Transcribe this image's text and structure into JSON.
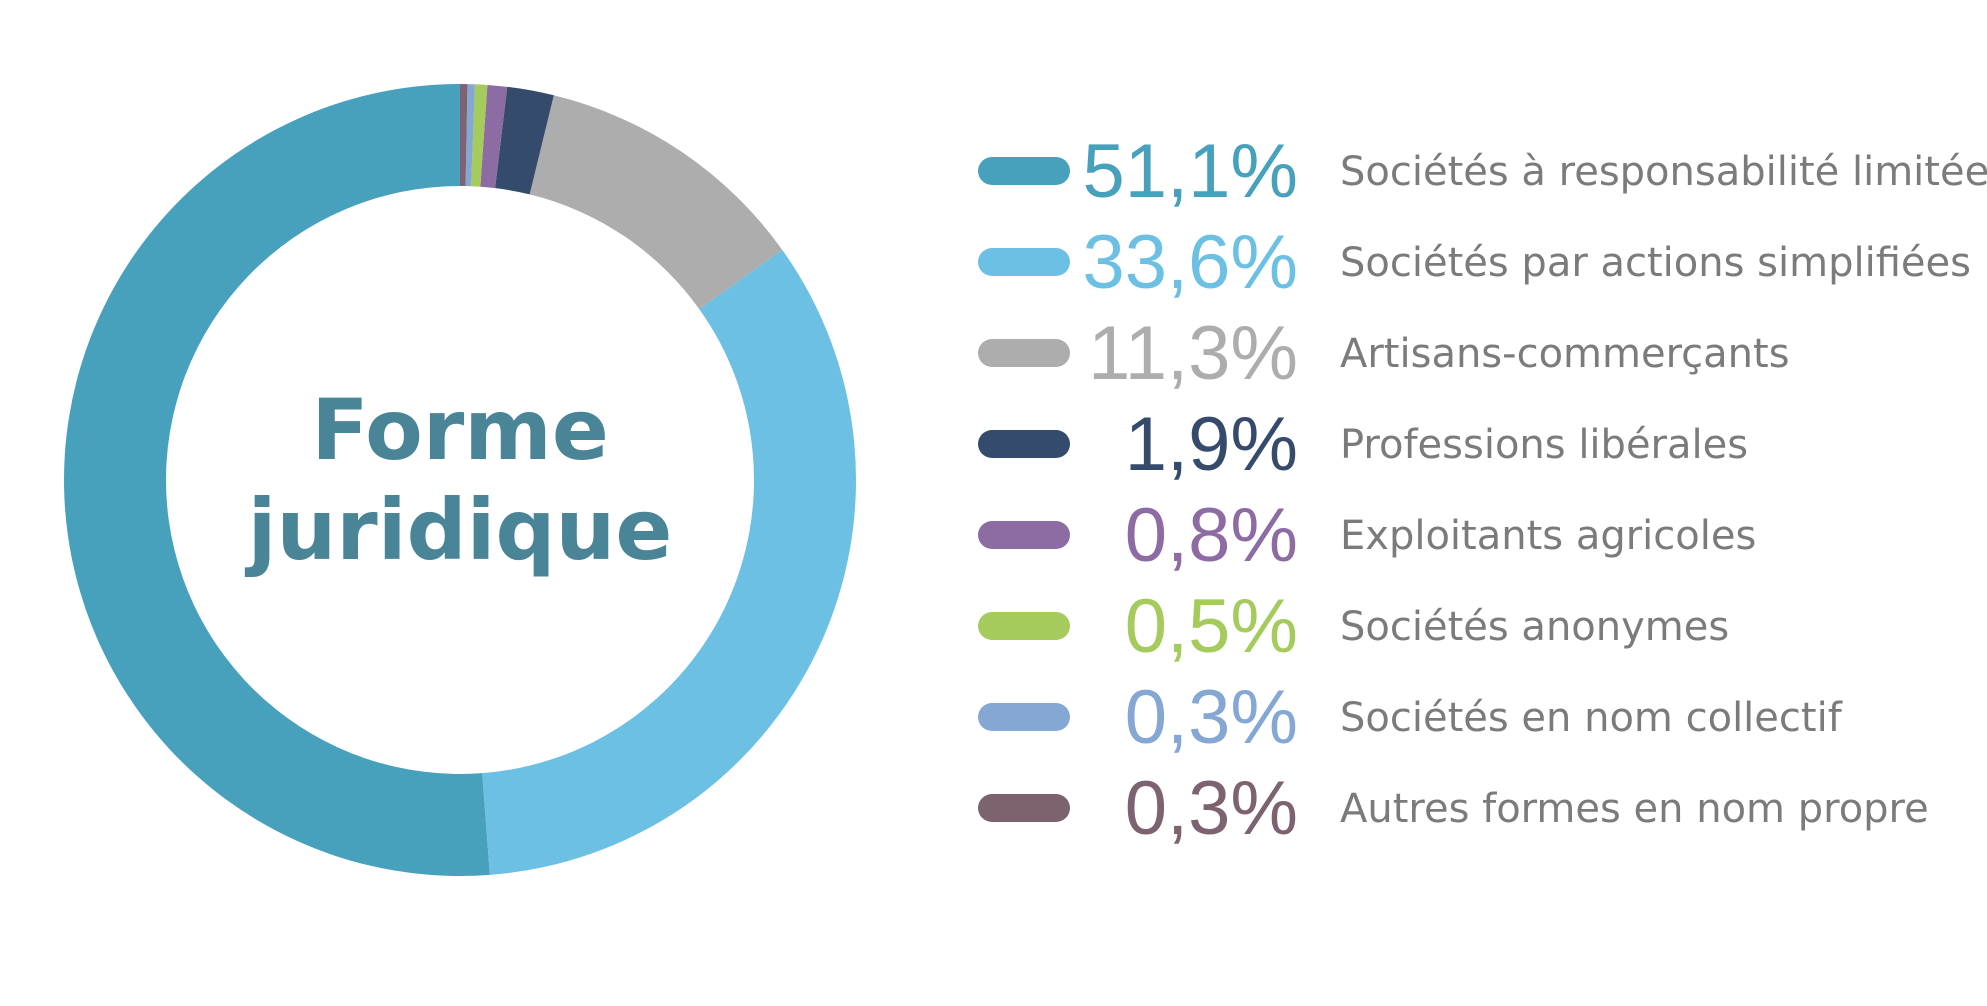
{
  "chart_data": {
    "type": "pie",
    "title": "Forme juridique",
    "title_lines": [
      "Forme",
      "juridique"
    ],
    "donut": true,
    "slices": [
      {
        "label": "Sociétés à responsabilité limitée",
        "value_label": "51,1%",
        "value": 51.1,
        "color": "#47a1bd"
      },
      {
        "label": "Sociétés par actions simplifiées",
        "value_label": "33,6%",
        "value": 33.6,
        "color": "#6cc0e3"
      },
      {
        "label": "Artisans-commerçants",
        "value_label": "11,3%",
        "value": 11.3,
        "color": "#adadad"
      },
      {
        "label": "Professions libérales",
        "value_label": "1,9%",
        "value": 1.9,
        "color": "#344b6c"
      },
      {
        "label": "Exploitants agricoles",
        "value_label": "0,8%",
        "value": 0.8,
        "color": "#8d6ba3"
      },
      {
        "label": "Sociétés anonymes",
        "value_label": "0,5%",
        "value": 0.5,
        "color": "#a4cb5c"
      },
      {
        "label": "Sociétés en nom collectif",
        "value_label": "0,3%",
        "value": 0.3,
        "color": "#84a7d3"
      },
      {
        "label": "Autres formes en nom propre",
        "value_label": "0,3%",
        "value": 0.3,
        "color": "#7d6270"
      }
    ],
    "start_angle": "top",
    "direction": "counterclockwise",
    "legend_position": "right"
  }
}
